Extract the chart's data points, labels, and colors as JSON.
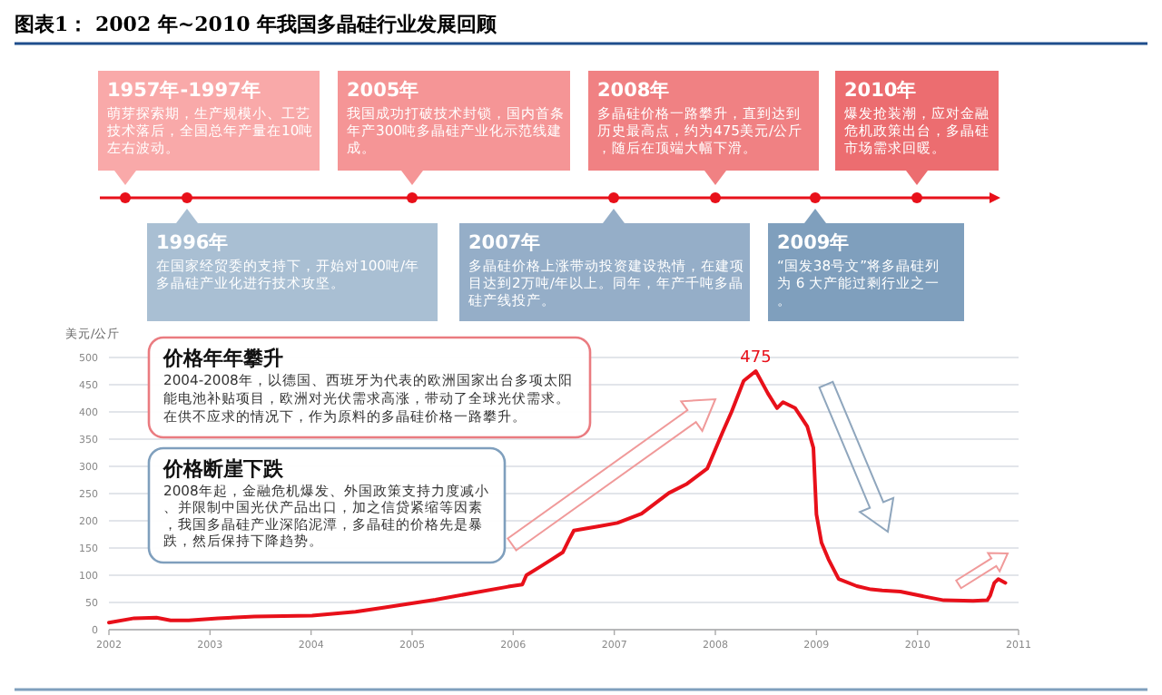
{
  "chart_data": {
    "type": "line",
    "title": "图表1：  2002 年~2010 年我国多晶硅行业发展回顾",
    "ylabel": "美元/公斤",
    "x": [
      2002.0,
      2002.25,
      2002.47,
      2002.61,
      2002.79,
      2003.08,
      2003.44,
      2004.01,
      2004.44,
      2004.73,
      2004.95,
      2005.23,
      2005.59,
      2005.95,
      2006.09,
      2006.13,
      2006.27,
      2006.38,
      2006.49,
      2006.56,
      2006.6,
      2006.85,
      2007.03,
      2007.27,
      2007.54,
      2007.72,
      2007.92,
      2008.07,
      2008.16,
      2008.28,
      2008.4,
      2008.52,
      2008.61,
      2008.67,
      2008.79,
      2008.91,
      2008.97,
      2009.0,
      2009.05,
      2009.12,
      2009.22,
      2009.4,
      2009.54,
      2009.65,
      2009.83,
      2010.12,
      2010.26,
      2010.55,
      2010.69,
      2010.72,
      2010.76,
      2010.8,
      2010.87
    ],
    "series": [
      {
        "color": "#e8101a",
        "values": [
          13,
          21,
          22,
          17,
          17,
          21,
          24,
          26,
          33,
          41,
          47,
          55,
          67,
          79,
          83,
          100,
          116,
          129,
          142,
          168,
          182,
          190,
          196,
          213,
          251,
          268,
          296,
          362,
          400,
          457,
          475,
          434,
          407,
          418,
          407,
          373,
          334,
          212,
          160,
          129,
          93,
          80,
          74,
          72,
          70,
          59,
          54,
          53,
          54,
          63,
          86,
          93,
          86
        ]
      }
    ],
    "xlim": [
      2002,
      2011
    ],
    "xticks": [
      2002,
      2003,
      2004,
      2005,
      2006,
      2007,
      2008,
      2009,
      2010,
      2011
    ],
    "ylim": [
      0,
      500
    ],
    "yticks": [
      0,
      50,
      100,
      150,
      200,
      250,
      300,
      350,
      400,
      450,
      500
    ],
    "grid": "y",
    "marker": "none",
    "line_style": "solid",
    "annotations": [
      "1957年-1997年",
      "萌芽探索期，生产规模小、工艺技术落后，全国总年产量在10吨左右波动。",
      "2005年",
      "我国成功打破技术封锁，国内首条年产300吨多晶硅产业化示范线建成。",
      "2008年",
      "多晶硅价格一路攀升，直到达到历史最高点，约为475美元/公斤，随后在顶端大幅下滑。",
      "2010年",
      "爆发抢装潮，应对金融危机政策出台，多晶硅市场需求回暖。",
      "1996年",
      "在国家经贸委的支持下，开始对100吨/年多晶硅产业化进行技术攻坚。",
      "2007年",
      "多晶硅价格上涨带动投资建设热情，在建项目达到2万吨/年以上。同年，年产千吨多晶硅产线投产。",
      "2009年",
      "“国发38号文”将多晶硅列为 6 大产能过剩行业之一。",
      "价格年年攀升",
      "2004-2008年，以德国、西班牙为代表的欧洲国家出台多项太阳能电池补贴项目，欧洲对光伏需求高涨，带动了全球光伏需求。在供不应求的情况下，作为原料的多晶硅价格一路攀升。",
      "价格断崖下跌",
      "2008年起，金融危机爆发、外国政策支持力度减小、并限制中国光伏产品出口，加之信贷紧缩等因素，我国多晶硅产业深陷泥潭，多晶硅的价格先是暴跌，然后保持下降趋势。",
      {
        "text": "475",
        "x": 2008.4,
        "y": 475
      }
    ]
  }
}
